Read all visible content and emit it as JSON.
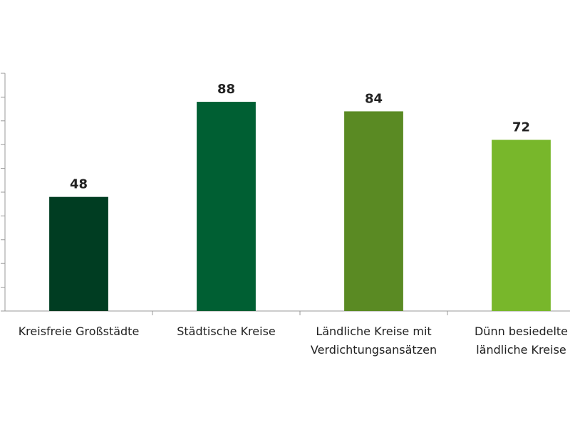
{
  "chart_data": {
    "type": "bar",
    "categories": [
      "Kreisfreie Großstädte",
      "Städtische Kreise",
      "Ländliche Kreise mit\nVerdichtungsansätzen",
      "Dünn besiedelte\nländliche Kreise"
    ],
    "values": [
      48,
      88,
      84,
      72
    ],
    "colors": [
      "#003d22",
      "#005f33",
      "#5a8a23",
      "#78b72b"
    ],
    "ylim": [
      0,
      100
    ],
    "yticks": [
      0,
      10,
      20,
      30,
      40,
      50,
      60,
      70,
      80,
      90,
      100
    ]
  }
}
